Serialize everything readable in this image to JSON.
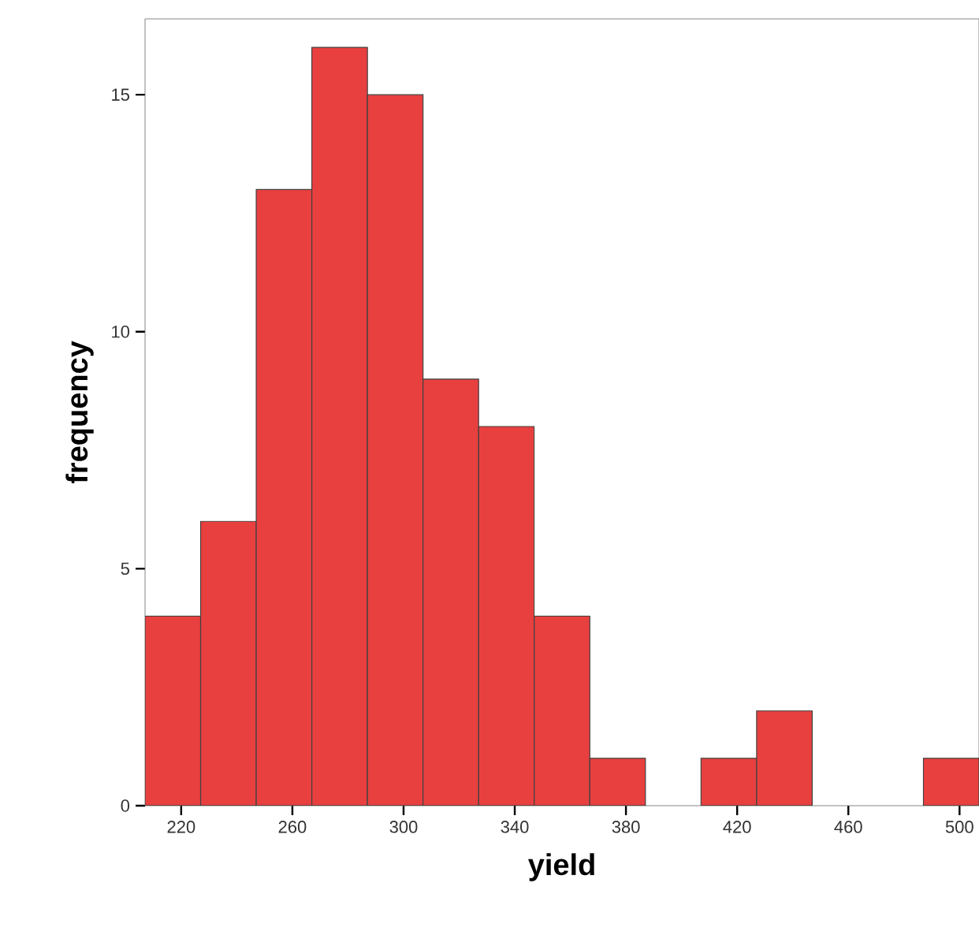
{
  "chart_data": {
    "type": "histogram",
    "xlabel": "yield",
    "ylabel": "frequency",
    "bins": [
      207,
      227,
      247,
      267,
      287,
      307,
      327,
      347,
      367,
      387,
      407,
      427,
      447,
      467,
      487,
      507
    ],
    "values": [
      4,
      6,
      13,
      16,
      15,
      9,
      8,
      4,
      1,
      0,
      1,
      2,
      0,
      0,
      1
    ],
    "color": "#e8403f",
    "xlim": [
      207,
      507
    ],
    "xticks": [
      220,
      260,
      300,
      340,
      380,
      420,
      460,
      500
    ],
    "ylim": [
      0,
      16.6
    ],
    "yticks": [
      0,
      5,
      10,
      15
    ],
    "grid": false
  }
}
